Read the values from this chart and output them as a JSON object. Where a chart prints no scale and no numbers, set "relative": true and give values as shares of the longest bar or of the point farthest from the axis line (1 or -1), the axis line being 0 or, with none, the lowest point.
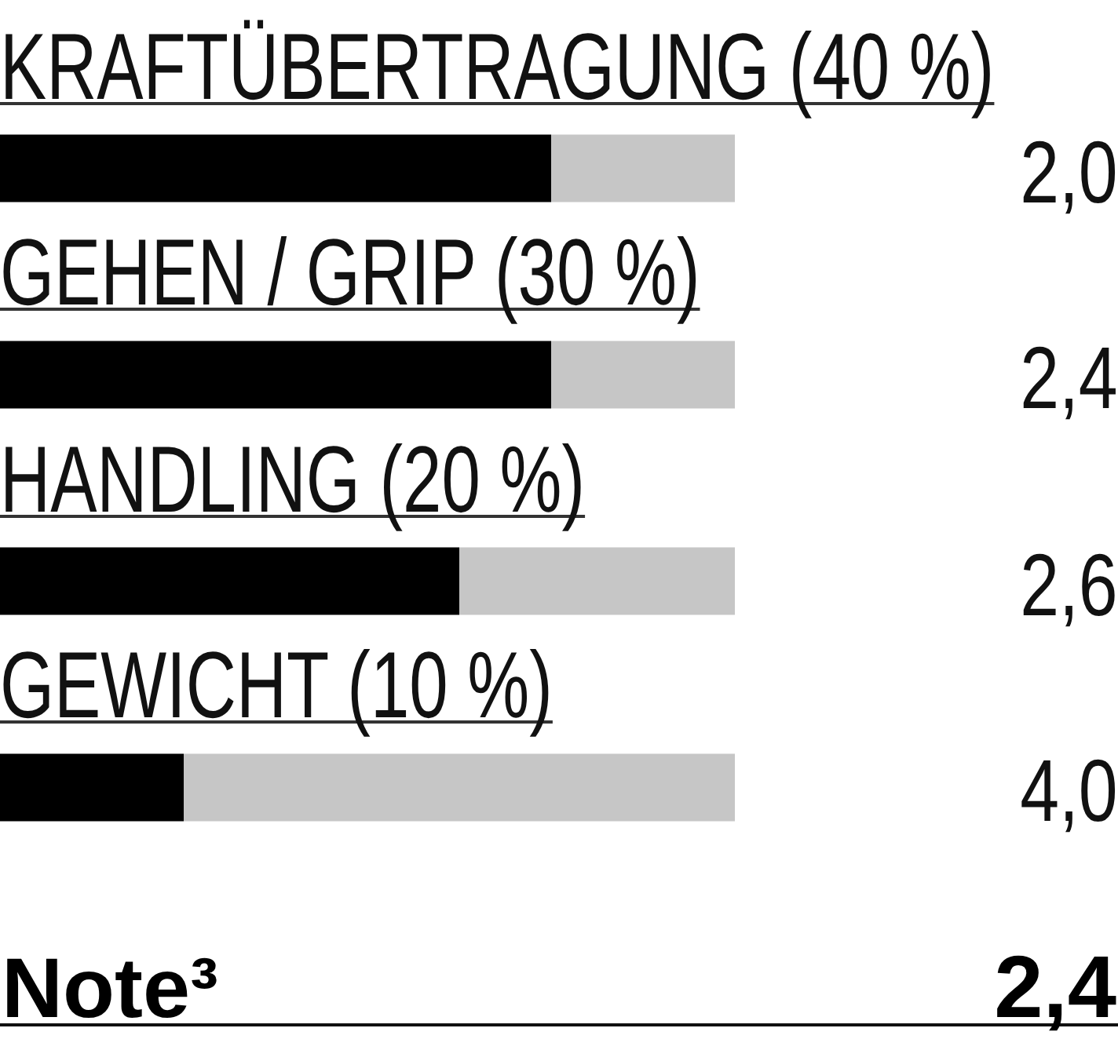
{
  "chart_data": {
    "type": "bar",
    "orientation": "horizontal",
    "stacked": true,
    "relative": true,
    "categories": [
      "KRAFTÜBERTRAGUNG (40 %)",
      "GEHEN / GRIP (30 %)",
      "HANDLING (20 %)",
      "GEWICHT (10 %)"
    ],
    "series": [
      {
        "color": "#000000",
        "values": [
          0.75,
          0.75,
          0.625,
          0.25
        ]
      },
      {
        "color": "#c6c6c6",
        "values": [
          0.25,
          0.25,
          0.375,
          0.75
        ]
      }
    ],
    "annotations": [
      "2,0",
      "2,4",
      "2,6",
      "4,0",
      "Note³",
      "2,4"
    ]
  }
}
